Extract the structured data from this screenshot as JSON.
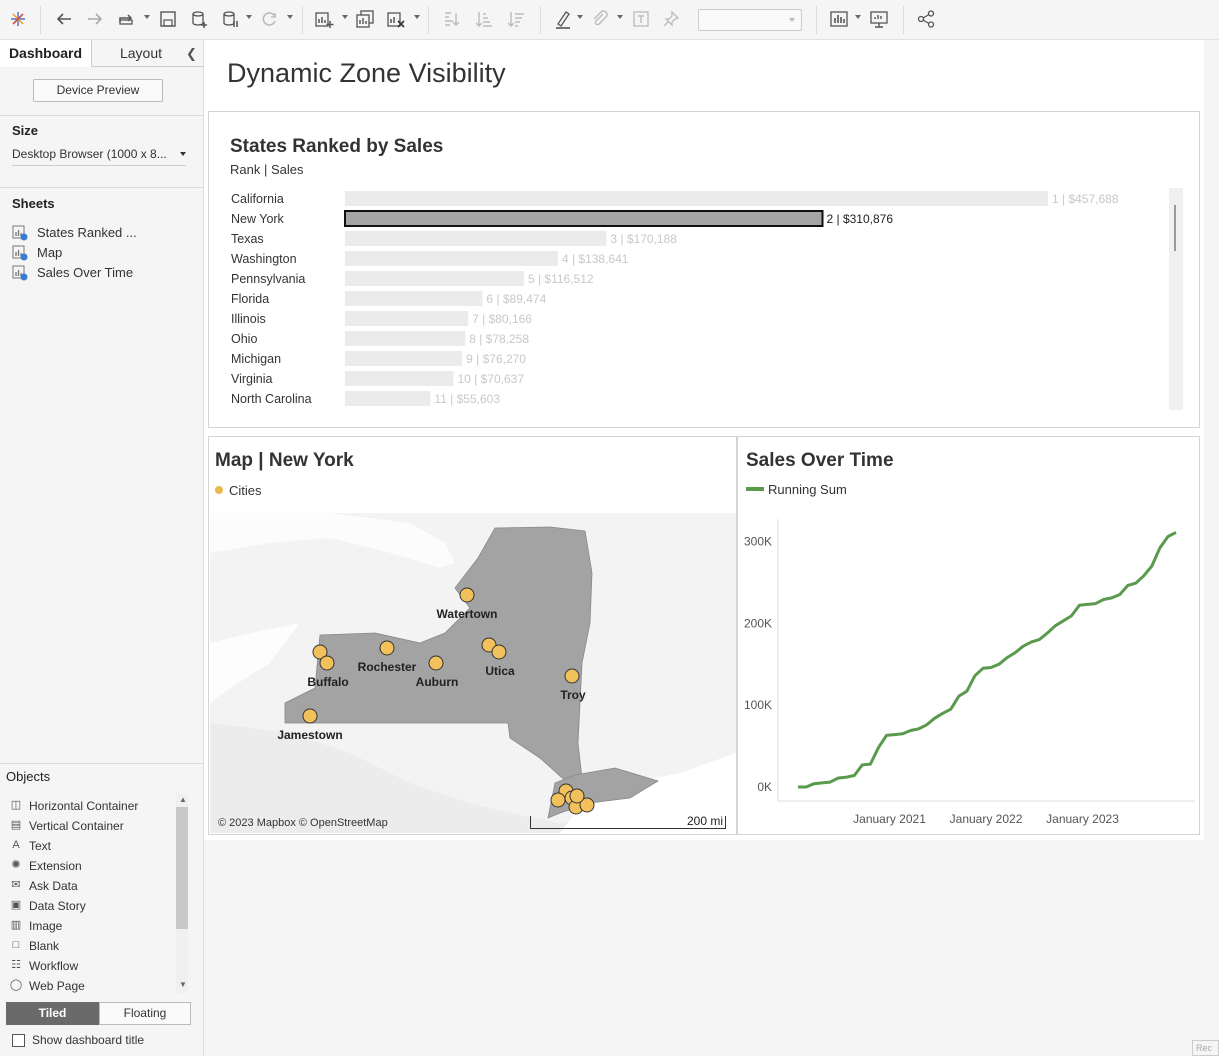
{
  "toolbar": {
    "icons": [
      "tableau-logo-icon",
      "undo-icon",
      "redo-icon",
      "replay-icon",
      "save-icon",
      "new-data-source-icon",
      "pause-updates-icon",
      "refresh-icon",
      "new-worksheet-icon",
      "duplicate-icon",
      "clear-icon",
      "swap-icon",
      "sort-ascending-icon",
      "sort-descending-icon",
      "highlight-icon",
      "group-icon",
      "labels-icon",
      "pin-icon",
      "fit-select",
      "show-me-icon",
      "presentation-icon",
      "share-icon"
    ]
  },
  "sidebar": {
    "tabs": {
      "dashboard": "Dashboard",
      "layout": "Layout"
    },
    "device_preview": "Device Preview",
    "size": {
      "title": "Size",
      "value": "Desktop Browser (1000 x 8..."
    },
    "sheets": {
      "title": "Sheets",
      "items": [
        {
          "label": "States Ranked ..."
        },
        {
          "label": "Map"
        },
        {
          "label": "Sales Over Time"
        }
      ]
    },
    "objects": {
      "title": "Objects",
      "items": [
        {
          "label": "Horizontal Container",
          "icon": "horizontal-container-icon"
        },
        {
          "label": "Vertical Container",
          "icon": "vertical-container-icon"
        },
        {
          "label": "Text",
          "icon": "text-icon"
        },
        {
          "label": "Extension",
          "icon": "extension-icon"
        },
        {
          "label": "Ask Data",
          "icon": "ask-data-icon"
        },
        {
          "label": "Data Story",
          "icon": "data-story-icon"
        },
        {
          "label": "Image",
          "icon": "image-icon"
        },
        {
          "label": "Blank",
          "icon": "blank-icon"
        },
        {
          "label": "Workflow",
          "icon": "workflow-icon"
        },
        {
          "label": "Web Page",
          "icon": "web-page-icon"
        }
      ]
    },
    "tiled": "Tiled",
    "floating": "Floating",
    "show_title": "Show dashboard title"
  },
  "dashboard": {
    "title": "Dynamic Zone Visibility",
    "states_panel": {
      "title": "States Ranked by Sales",
      "subtitle": "Rank | Sales"
    },
    "map_panel": {
      "title": "Map | New York",
      "legend": "Cities",
      "credit": "© 2023 Mapbox © OpenStreetMap",
      "scale": "200 mi",
      "city_labels": [
        "Watertown",
        "Rochester",
        "Buffalo",
        "Auburn",
        "Utica",
        "Troy",
        "Jamestown"
      ]
    },
    "sales_panel": {
      "title": "Sales Over Time",
      "legend": "Running Sum"
    }
  },
  "chart_data": [
    {
      "type": "bar",
      "title": "States Ranked by Sales",
      "subtitle": "Rank | Sales",
      "categories": [
        "California",
        "New York",
        "Texas",
        "Washington",
        "Pennsylvania",
        "Florida",
        "Illinois",
        "Ohio",
        "Michigan",
        "Virginia",
        "North Carolina"
      ],
      "values": [
        457688,
        310876,
        170188,
        138641,
        116512,
        89474,
        80166,
        78258,
        76270,
        70637,
        55603
      ],
      "labels": [
        "1 | $457,688",
        "2 | $310,876",
        "3 | $170,188",
        "4 | $138,641",
        "5 | $116,512",
        "6 | $89,474",
        "7 | $80,166",
        "8 | $78,258",
        "9 | $76,270",
        "10 | $70,637",
        "11 | $55,603"
      ],
      "highlighted": "New York",
      "colors": {
        "bar": "#ebebeb",
        "highlight": "#a5a5a5",
        "muted_text": "#c8c8c8"
      }
    },
    {
      "type": "line",
      "title": "Sales Over Time",
      "series": [
        {
          "name": "Running Sum",
          "color": "#5a9a4c",
          "x": [
            "2020-01",
            "2020-02",
            "2020-03",
            "2020-04",
            "2020-05",
            "2020-06",
            "2020-07",
            "2020-08",
            "2020-09",
            "2020-10",
            "2020-11",
            "2020-12",
            "2021-01",
            "2021-02",
            "2021-03",
            "2021-04",
            "2021-05",
            "2021-06",
            "2021-07",
            "2021-08",
            "2021-09",
            "2021-10",
            "2021-11",
            "2021-12",
            "2022-01",
            "2022-02",
            "2022-03",
            "2022-04",
            "2022-05",
            "2022-06",
            "2022-07",
            "2022-08",
            "2022-09",
            "2022-10",
            "2022-11",
            "2022-12",
            "2023-01",
            "2023-02",
            "2023-03",
            "2023-04",
            "2023-05",
            "2023-06",
            "2023-07",
            "2023-08",
            "2023-09",
            "2023-10",
            "2023-11",
            "2023-12"
          ],
          "values": [
            0,
            0,
            4000,
            5000,
            6000,
            11000,
            12000,
            14000,
            27000,
            28000,
            48000,
            63000,
            64000,
            65000,
            69000,
            71000,
            76000,
            84000,
            90000,
            95000,
            111000,
            117000,
            136000,
            145000,
            146000,
            150000,
            158000,
            164000,
            172000,
            177000,
            180000,
            188000,
            197000,
            203000,
            209000,
            222000,
            223000,
            224000,
            229000,
            231000,
            235000,
            246000,
            249000,
            258000,
            270000,
            292000,
            306000,
            311000
          ]
        }
      ],
      "y_ticks": [
        "0K",
        "100K",
        "200K",
        "300K"
      ],
      "x_ticks": [
        "January 2021",
        "January 2022",
        "January 2023"
      ],
      "ylim": [
        0,
        320000
      ]
    }
  ]
}
